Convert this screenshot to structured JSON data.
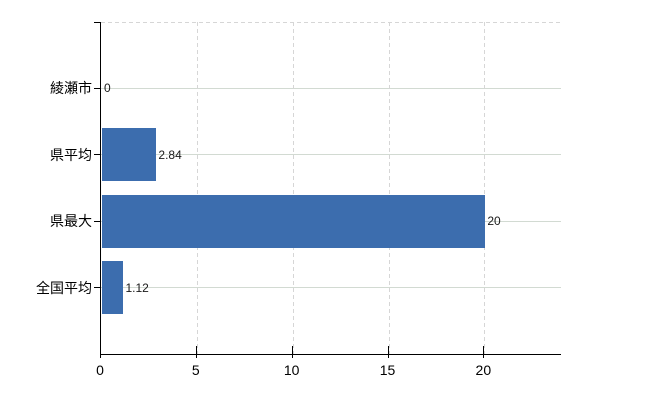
{
  "chart_data": {
    "type": "bar",
    "orientation": "horizontal",
    "title": "",
    "xlabel": "",
    "ylabel": "",
    "categories": [
      "綾瀬市",
      "県平均",
      "県最大",
      "全国平均"
    ],
    "values": [
      0,
      2.84,
      20,
      1.12
    ],
    "value_labels": [
      "0",
      "2.84",
      "20",
      "1.12"
    ],
    "x_ticks": [
      0,
      5,
      10,
      15,
      20
    ],
    "x_tick_labels": [
      "0",
      "5",
      "10",
      "15",
      "20"
    ],
    "xlim": [
      0,
      24
    ],
    "grid": "on",
    "legend": "none",
    "bar_color": "#3c6dae",
    "axis_color": "#000000",
    "label_color": "#000000"
  }
}
